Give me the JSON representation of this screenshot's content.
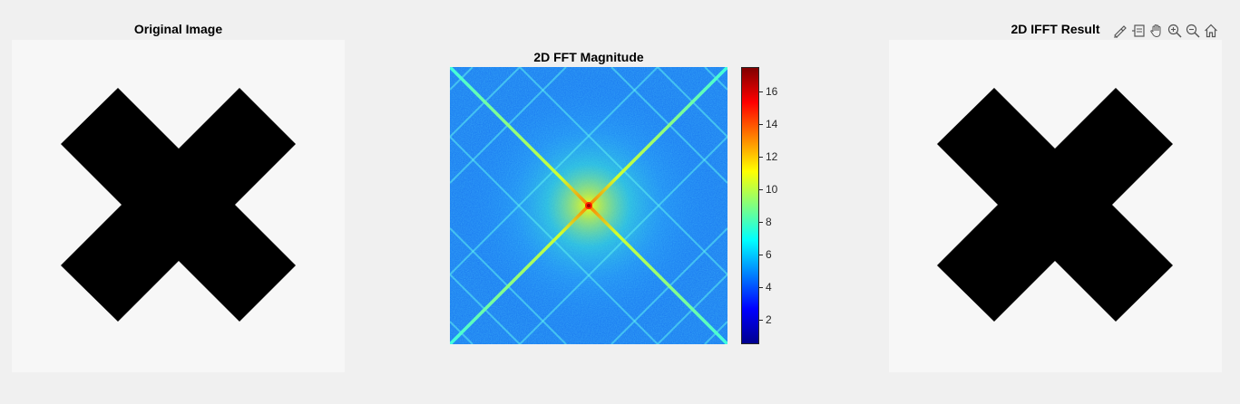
{
  "titles": {
    "original": "Original Image",
    "fft": "2D FFT Magnitude",
    "ifft": "2D IFFT Result"
  },
  "toolbar": [
    {
      "name": "brush-data-icon",
      "label": "Brush"
    },
    {
      "name": "datatip-icon",
      "label": "Data Tips"
    },
    {
      "name": "pan-hand-icon",
      "label": "Pan"
    },
    {
      "name": "zoom-in-icon",
      "label": "Zoom In"
    },
    {
      "name": "zoom-out-icon",
      "label": "Zoom Out"
    },
    {
      "name": "home-icon",
      "label": "Restore View"
    }
  ],
  "chart_data": [
    {
      "type": "image",
      "title": "Original Image",
      "content": "black X shape on white background",
      "colors": {
        "background": "#f7f7f7",
        "shape": "#000000"
      }
    },
    {
      "type": "heatmap",
      "title": "2D FFT Magnitude",
      "colormap": "jet",
      "clim": [
        0.5,
        17.5
      ],
      "colorbar_ticks": [
        2,
        4,
        6,
        8,
        10,
        12,
        14,
        16
      ],
      "pattern": "bright X-shaped diagonals through the center with peak ~17 at center, background ~5-7"
    },
    {
      "type": "image",
      "title": "2D IFFT Result",
      "content": "black X shape on white background (reconstruction)",
      "colors": {
        "background": "#f7f7f7",
        "shape": "#000000"
      }
    }
  ]
}
